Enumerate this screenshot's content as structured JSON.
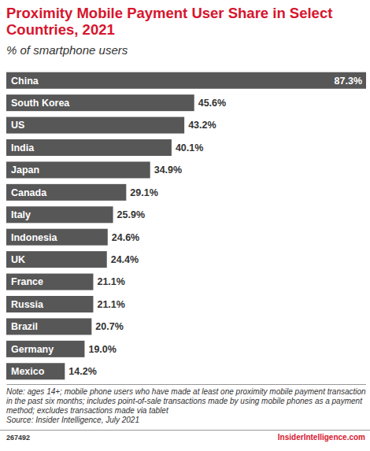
{
  "chart_data": {
    "type": "bar",
    "title": "Proximity Mobile Payment User Share in Select Countries, 2021",
    "subtitle": "% of smartphone users",
    "categories": [
      "China",
      "South Korea",
      "US",
      "India",
      "Japan",
      "Canada",
      "Italy",
      "Indonesia",
      "UK",
      "France",
      "Russia",
      "Brazil",
      "Germany",
      "Mexico"
    ],
    "values": [
      87.3,
      45.6,
      43.2,
      40.1,
      34.9,
      29.1,
      25.9,
      24.6,
      24.4,
      21.1,
      21.1,
      20.7,
      19.0,
      14.2
    ],
    "value_labels": [
      "87.3%",
      "45.6%",
      "43.2%",
      "40.1%",
      "34.9%",
      "29.1%",
      "25.9%",
      "24.6%",
      "24.4%",
      "21.1%",
      "21.1%",
      "20.7%",
      "19.0%",
      "14.2%"
    ],
    "color": "#575757",
    "orientation": "horizontal",
    "data_labels": true,
    "tick_labels": false,
    "xlim": [
      0,
      87.3
    ],
    "note": "Note: ages 14+; mobile phone users who have made at least one proximity mobile payment transaction in the past six months; includes point-of-sale transactions made by using mobile phones as a payment method; excludes transactions made via tablet",
    "source": "Source: Insider Intelligence, July 2021"
  },
  "footer": {
    "chart_id": "267492",
    "site": "InsiderIntelligence.com"
  }
}
